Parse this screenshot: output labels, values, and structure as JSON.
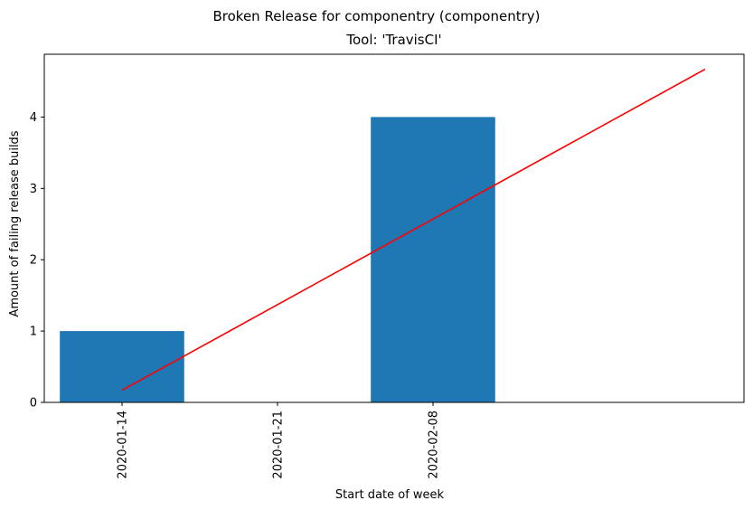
{
  "chart_data": {
    "type": "bar",
    "title": "Broken Release for componentry (componentry)",
    "subtitle": "Tool: 'TravisCI'",
    "xlabel": "Start date of week",
    "ylabel": "Amount of failing release builds",
    "categories": [
      "2020-01-14",
      "2020-01-21",
      "2020-02-08"
    ],
    "values": [
      1,
      0,
      4
    ],
    "bar_color": "#1f77b4",
    "trend_line": {
      "color": "#ff0000",
      "x": [
        0,
        3.75
      ],
      "y": [
        0.17,
        4.67
      ]
    },
    "xlim": [
      -0.5,
      4
    ],
    "ylim": [
      0,
      4.88
    ],
    "yticks": [
      0,
      1,
      2,
      3,
      4
    ],
    "grid": false,
    "legend": "none"
  }
}
